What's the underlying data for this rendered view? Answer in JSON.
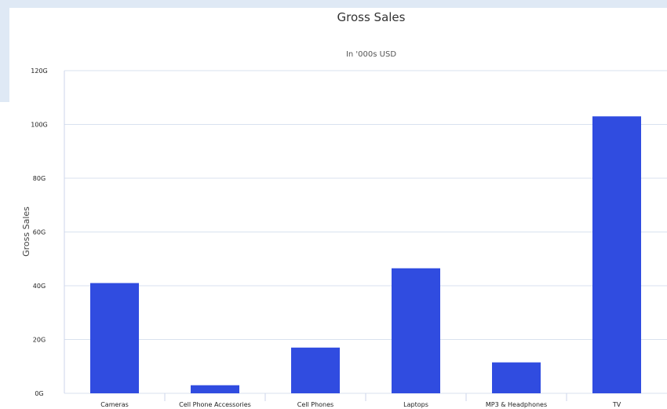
{
  "chart_data": {
    "type": "bar",
    "title": "Gross Sales",
    "subtitle": "In '000s USD",
    "xlabel": "",
    "ylabel": "Gross Sales",
    "categories": [
      "Cameras",
      "Cell Phone Accessories",
      "Cell Phones",
      "Laptops",
      "MP3 & Headphones",
      "TV"
    ],
    "series": [
      {
        "values": [
          41,
          3,
          17,
          46.5,
          11.5,
          103
        ]
      }
    ],
    "ylim": [
      0,
      120
    ],
    "yticks": [
      0,
      20,
      40,
      60,
      80,
      100,
      120
    ],
    "ytick_labels": [
      "0G",
      "20G",
      "40G",
      "60G",
      "80G",
      "100G",
      "120G"
    ],
    "grid": true,
    "legend": "none",
    "colors": {
      "bar": "#304ce0",
      "grid": "#d9e2ef",
      "axis": "#ccd6eb"
    }
  }
}
